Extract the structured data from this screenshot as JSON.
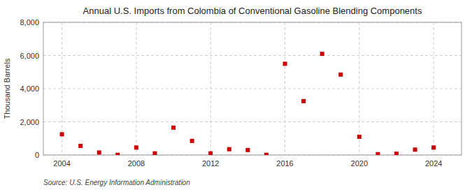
{
  "chart_data": {
    "type": "scatter",
    "title": "Annual U.S. Imports from Colombia of Conventional Gasoline Blending Components",
    "ylabel": "Thousand Barrels",
    "annotations": [
      "Source: U.S. Energy Information Administration"
    ],
    "x": [
      2004,
      2005,
      2006,
      2007,
      2008,
      2009,
      2010,
      2011,
      2012,
      2013,
      2014,
      2015,
      2016,
      2017,
      2018,
      2019,
      2020,
      2021,
      2022,
      2023,
      2024
    ],
    "values": [
      1250,
      550,
      150,
      10,
      450,
      100,
      1650,
      850,
      100,
      350,
      300,
      10,
      5500,
      3250,
      6100,
      4850,
      1100,
      50,
      75,
      325,
      450
    ],
    "color": "#cc0000",
    "marker": "square",
    "xlim": [
      2003,
      2025.5
    ],
    "ylim": [
      0,
      8000
    ],
    "xticks": [
      2004,
      2008,
      2012,
      2016,
      2020,
      2024
    ],
    "yticks": [
      0,
      {
        "value": 2000,
        "label": "2,000"
      },
      {
        "value": 4000,
        "label": "4,000"
      },
      {
        "value": 6000,
        "label": "6,000"
      },
      {
        "value": 8000,
        "label": "8,000"
      }
    ],
    "grid": true
  }
}
